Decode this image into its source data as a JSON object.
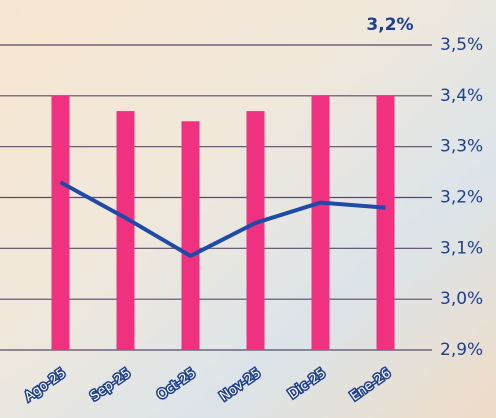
{
  "chart_data": {
    "type": "bar-line",
    "annotation": "3,2%",
    "categories": [
      "Ago-25",
      "Sep-25",
      "Oct-25",
      "Nov-25",
      "Dic-25",
      "Ene-26"
    ],
    "series": [
      {
        "type": "bar",
        "color": "#f0317f",
        "values": [
          3.4,
          3.37,
          3.35,
          3.37,
          3.4,
          3.4
        ]
      },
      {
        "type": "line",
        "color": "#1f4aa8",
        "values": [
          3.23,
          3.16,
          3.085,
          3.15,
          3.19,
          3.18
        ]
      }
    ],
    "ylim": [
      2.9,
      3.5
    ],
    "yticks": [
      {
        "value": 2.9,
        "label": "2,9%"
      },
      {
        "value": 3.0,
        "label": "3,0%"
      },
      {
        "value": 3.1,
        "label": "3,1%"
      },
      {
        "value": 3.2,
        "label": "3,2%"
      },
      {
        "value": 3.3,
        "label": "3,3%"
      },
      {
        "value": 3.4,
        "label": "3,4%"
      },
      {
        "value": 3.5,
        "label": "3,5%"
      }
    ],
    "grid": true
  }
}
